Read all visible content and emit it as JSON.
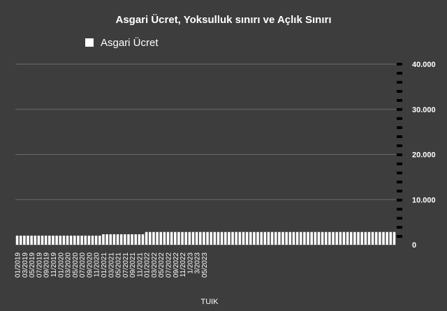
{
  "chart_data": {
    "type": "bar+line",
    "title": "Asgari Ücret, Yoksulluk sınırı ve Açlık Sınırı",
    "source_label": "TUIK",
    "legend_position": "top",
    "ylim": [
      0,
      40000
    ],
    "y_ticks": [
      0,
      10000,
      20000,
      30000,
      40000
    ],
    "y_tick_labels": [
      "0",
      "10.000",
      "20.000",
      "30.000",
      "40.000"
    ],
    "grid": true,
    "x_tick_labels": [
      "01/2019",
      "03/2019",
      "05/2019",
      "07/2019",
      "09/2019",
      "11/2019",
      "01/2020",
      "03/2020",
      "05/2020",
      "07/2020",
      "09/2020",
      "11/2020",
      "01/2021",
      "03/2021",
      "05/2021",
      "07/2021",
      "09/2021",
      "11/2021",
      "01/2022",
      "03/2022",
      "05/2022",
      "07/2022",
      "09/2022",
      "11/2022",
      "1/2023",
      "3/2023",
      "05/2023"
    ],
    "series": [
      {
        "name": "Asgari Ücret",
        "kind": "bar",
        "color": "#ffffff",
        "values": [
          2020,
          2020,
          2020,
          2020,
          2020,
          2020,
          2020,
          2020,
          2020,
          2020,
          2020,
          2020,
          2020,
          2020,
          2020,
          2020,
          2020,
          2020,
          2020,
          2020,
          2020,
          2020,
          2020,
          2020,
          2325,
          2325,
          2325,
          2325,
          2325,
          2325,
          2325,
          2325,
          2325,
          2325,
          2325,
          2325,
          2826,
          2826,
          2826,
          2826,
          2826,
          2826,
          2826,
          2826,
          2826,
          2826,
          2826,
          2826,
          2826,
          2826,
          2826,
          2826,
          2826,
          2826,
          2826,
          2826,
          2826,
          2826,
          2826,
          2826,
          2826,
          2826,
          2826,
          2826,
          2826,
          2826,
          2826,
          2826,
          2826,
          2826,
          2826,
          2826,
          2826,
          2826,
          2826,
          2826,
          2826,
          2826,
          2826,
          2826,
          2826,
          2826,
          2826,
          2826,
          2826,
          2826,
          2826,
          2826,
          2826,
          2826,
          2826,
          2826,
          2826,
          2826,
          2826,
          2826,
          2826,
          2826,
          2826,
          2826,
          2826,
          2826,
          2826,
          2826,
          2826,
          2826
        ]
      }
    ]
  }
}
